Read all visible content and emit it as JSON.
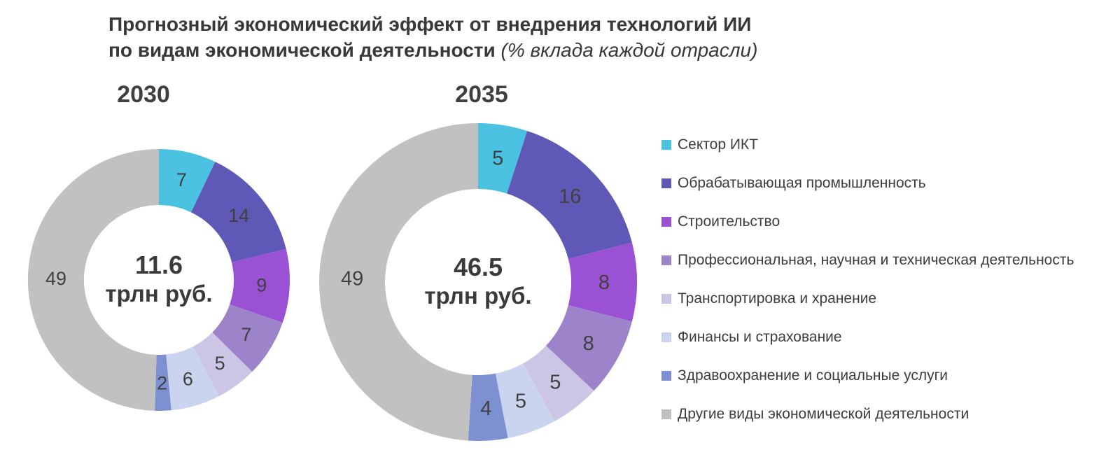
{
  "title": {
    "line1": "Прогнозный экономический эффект от внедрения технологий ИИ",
    "line2_bold": "по видам экономической деятельности",
    "line2_italic": "(% вклада каждой отрасли)"
  },
  "chart_data": {
    "type": "pie",
    "variant": "donut",
    "title": "Прогнозный экономический эффект от внедрения технологий ИИ по видам экономической деятельности (% вклада каждой отрасли)",
    "legend_position": "right",
    "value_label_color": "#404040",
    "start_angle_deg": -90,
    "direction": "clockwise",
    "sectors": [
      {
        "label": "Сектор ИКТ",
        "color": "#4bc2e2"
      },
      {
        "label": "Обрабатывающая промышленность",
        "color": "#5f58b7"
      },
      {
        "label": "Строительство",
        "color": "#9b51d3"
      },
      {
        "label": "Профессиональная, научная и техническая деятельность",
        "color": "#9c83ca"
      },
      {
        "label": "Транспортировка и хранение",
        "color": "#cdc5e6"
      },
      {
        "label": "Финансы и страхование",
        "color": "#cbd4ee"
      },
      {
        "label": "Здравоохранение и социальные услуги",
        "color": "#7d90d1"
      },
      {
        "label": "Другие виды экономической деятельности",
        "color": "#c1c1c1"
      }
    ],
    "charts": [
      {
        "year": "2030",
        "center_value": "11.6",
        "center_unit": "трлн руб.",
        "values": [
          7,
          14,
          9,
          7,
          5,
          6,
          2,
          49
        ]
      },
      {
        "year": "2035",
        "center_value": "46.5",
        "center_unit": "трлн руб.",
        "values": [
          5,
          16,
          8,
          8,
          5,
          5,
          4,
          49
        ]
      }
    ]
  }
}
